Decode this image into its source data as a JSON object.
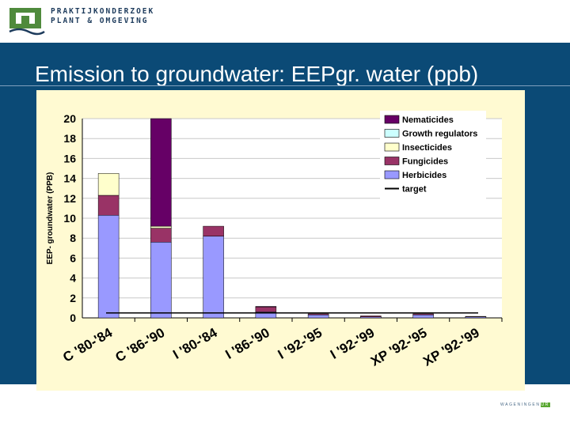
{
  "header": {
    "org_line1": "PRAKTIJKONDERZOEK",
    "org_line2": "PLANT & OMGEVING",
    "logo_icon": "wur-logo-icon"
  },
  "slide": {
    "title": "Emission to groundwater: EEPgr. water (ppb)"
  },
  "footer": {
    "brand_main": "WAGENINGEN",
    "brand_tag": "UR"
  },
  "colors": {
    "band": "#0b4a76",
    "panel": "#fffad2",
    "Nematicides": "#660066",
    "Growth regulators": "#ccffff",
    "Insecticides": "#ffffcc",
    "Fungicides": "#993366",
    "Herbicides": "#9999ff",
    "target": "#000000"
  },
  "chart_data": {
    "type": "bar",
    "stacked": true,
    "ylabel": "EEP- groundwater (PPB)",
    "ylim": [
      0,
      20
    ],
    "yticks": [
      "0",
      "2",
      "4",
      "6",
      "8",
      "10",
      "12",
      "14",
      "16",
      "18",
      "20"
    ],
    "categories": [
      "C '80-'84",
      "C '86-'90",
      "I '80-'84",
      "I '86-'90",
      "I '92-'95",
      "I '92-'99",
      "XP '92-'95",
      "XP '92-'99"
    ],
    "series": [
      {
        "name": "Herbicides",
        "values": [
          10.3,
          7.6,
          8.2,
          0.6,
          0.3,
          0.1,
          0.3,
          0.1
        ]
      },
      {
        "name": "Fungicides",
        "values": [
          2.0,
          1.4,
          1.0,
          0.5,
          0.1,
          0.1,
          0.1,
          0.05
        ]
      },
      {
        "name": "Insecticides",
        "values": [
          2.2,
          0.2,
          0.0,
          0.0,
          0.0,
          0.0,
          0.0,
          0.0
        ]
      },
      {
        "name": "Growth regulators",
        "values": [
          0.0,
          0.0,
          0.0,
          0.0,
          0.0,
          0.0,
          0.0,
          0.0
        ]
      },
      {
        "name": "Nematicides",
        "values": [
          0.0,
          10.8,
          0.0,
          0.05,
          0.0,
          0.0,
          0.0,
          0.0
        ]
      }
    ],
    "target": 0.5,
    "legend_order": [
      "Nematicides",
      "Growth regulators",
      "Insecticides",
      "Fungicides",
      "Herbicides",
      "target"
    ],
    "legend_position": "top-right",
    "grid": true
  }
}
